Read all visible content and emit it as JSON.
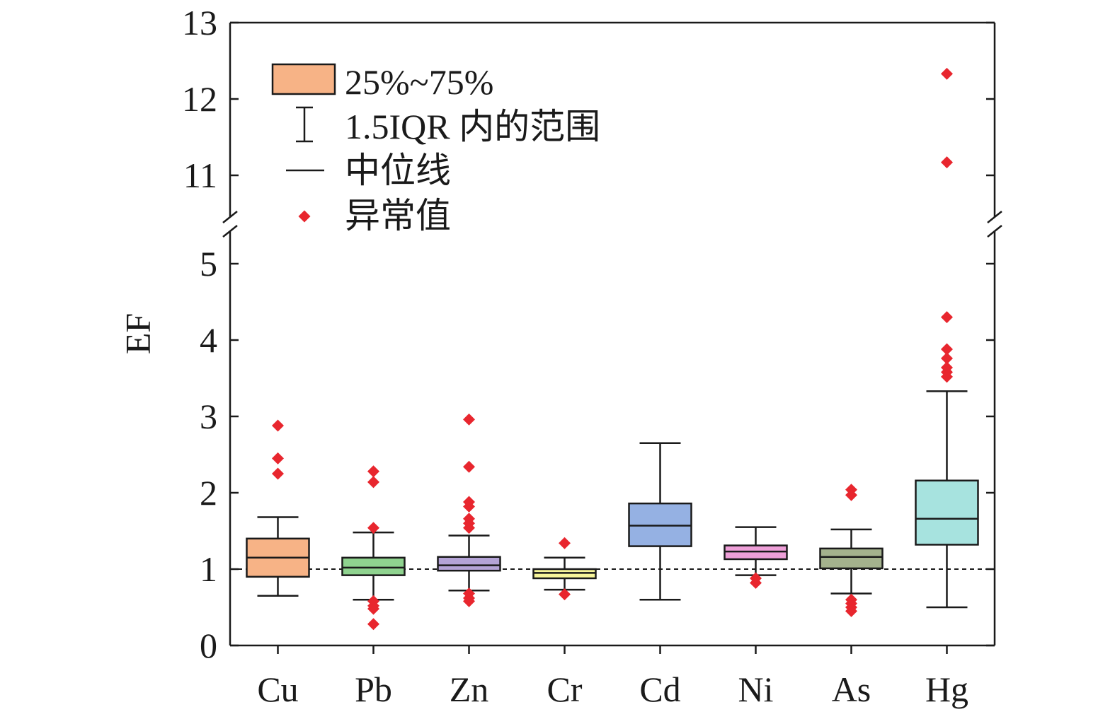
{
  "chart_data": {
    "type": "box",
    "ylabel": "EF",
    "categories": [
      "Cu",
      "Pb",
      "Zn",
      "Cr",
      "Cd",
      "Ni",
      "As",
      "Hg"
    ],
    "y_lower_ticks": [
      "0",
      "1",
      "2",
      "3",
      "4",
      "5"
    ],
    "y_upper_ticks": [
      "11",
      "12",
      "13"
    ],
    "y_lower_range": [
      0,
      5.4
    ],
    "y_upper_range": [
      10.4,
      13
    ],
    "axis_break": true,
    "reference_line": 1,
    "legend": {
      "placement": "top-left",
      "entries": [
        {
          "type": "box",
          "label": "25%~75%"
        },
        {
          "type": "whisker",
          "label": "1.5IQR 内的范围"
        },
        {
          "type": "median",
          "label": "中位线"
        },
        {
          "type": "outlier",
          "label": "异常值"
        }
      ]
    },
    "series": [
      {
        "category": "Cu",
        "whisker_low": 0.65,
        "q1": 0.9,
        "median": 1.15,
        "q3": 1.4,
        "whisker_high": 1.68,
        "outliers": [
          2.25,
          2.45,
          2.88
        ],
        "color": "#f7b386"
      },
      {
        "category": "Pb",
        "whisker_low": 0.6,
        "q1": 0.92,
        "median": 1.02,
        "q3": 1.15,
        "whisker_high": 1.48,
        "outliers": [
          0.28,
          0.48,
          0.52,
          0.58,
          1.54,
          2.14,
          2.28
        ],
        "color": "#8fd38f"
      },
      {
        "category": "Zn",
        "whisker_low": 0.72,
        "q1": 0.98,
        "median": 1.05,
        "q3": 1.16,
        "whisker_high": 1.44,
        "outliers": [
          0.58,
          0.62,
          0.68,
          1.54,
          1.6,
          1.66,
          1.82,
          1.88,
          2.34,
          2.96
        ],
        "color": "#b4a3d6"
      },
      {
        "category": "Cr",
        "whisker_low": 0.73,
        "q1": 0.88,
        "median": 0.95,
        "q3": 1.0,
        "whisker_high": 1.15,
        "outliers": [
          0.67,
          1.34
        ],
        "color": "#f7f59a"
      },
      {
        "category": "Cd",
        "whisker_low": 0.6,
        "q1": 1.3,
        "median": 1.57,
        "q3": 1.86,
        "whisker_high": 2.65,
        "outliers": [],
        "color": "#95b1e3"
      },
      {
        "category": "Ni",
        "whisker_low": 0.92,
        "q1": 1.13,
        "median": 1.23,
        "q3": 1.31,
        "whisker_high": 1.55,
        "outliers": [
          0.82,
          0.88
        ],
        "color": "#ee9fd8"
      },
      {
        "category": "As",
        "whisker_low": 0.68,
        "q1": 1.01,
        "median": 1.16,
        "q3": 1.27,
        "whisker_high": 1.52,
        "outliers": [
          0.45,
          0.5,
          0.55,
          0.6,
          1.97,
          2.04
        ],
        "color": "#a4b28d"
      },
      {
        "category": "Hg",
        "whisker_low": 0.5,
        "q1": 1.32,
        "median": 1.66,
        "q3": 2.16,
        "whisker_high": 3.33,
        "outliers": [
          3.52,
          3.58,
          3.64,
          3.76,
          3.88,
          4.3,
          11.17,
          12.33
        ],
        "color": "#a7e3df"
      }
    ],
    "outlier_color": "#e8262e",
    "legend_box_color": "#f7b386"
  }
}
